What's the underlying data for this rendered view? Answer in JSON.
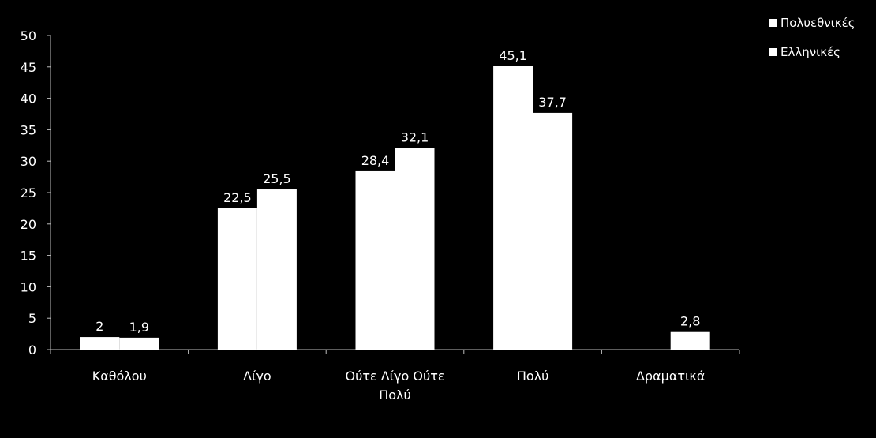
{
  "chart_data": {
    "type": "bar",
    "categories": [
      "Καθόλου",
      "Λίγο",
      "Ούτε Λίγο Ούτε Πολύ",
      "Πολύ",
      "Δραματικά"
    ],
    "category_lines": [
      [
        "Καθόλου"
      ],
      [
        "Λίγο"
      ],
      [
        "Ούτε Λίγο Ούτε",
        "Πολύ"
      ],
      [
        "Πολύ"
      ],
      [
        "Δραματικά"
      ]
    ],
    "series": [
      {
        "name": "Πολυεθνικές",
        "values": [
          2,
          22.5,
          28.4,
          45.1,
          0
        ],
        "labels": [
          "2",
          "22,5",
          "28,4",
          "45,1",
          ""
        ]
      },
      {
        "name": "Ελληνικές",
        "values": [
          1.9,
          25.5,
          32.1,
          37.7,
          2.8
        ],
        "labels": [
          "1,9",
          "25,5",
          "32,1",
          "37,7",
          "2,8"
        ]
      }
    ],
    "ylim": [
      0,
      50
    ],
    "yticks": [
      0,
      5,
      10,
      15,
      20,
      25,
      30,
      35,
      40,
      45,
      50
    ],
    "bar_color": "#ffffff",
    "background": "#000000",
    "legend_position": "top-right"
  }
}
